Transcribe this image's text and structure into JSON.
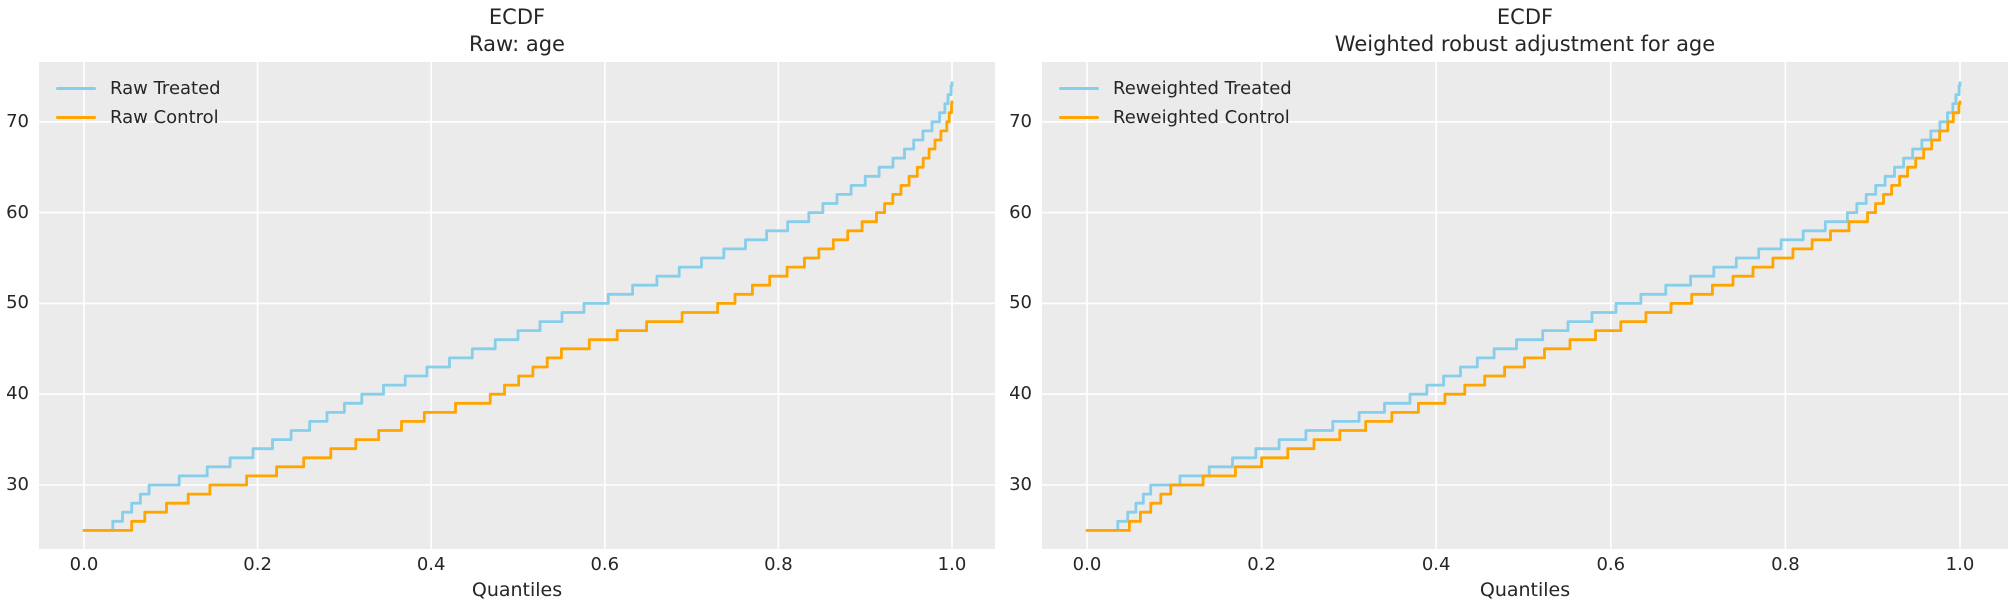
{
  "figure": {
    "background": "#ffffff",
    "axes_background": "#ebebeb",
    "grid_color": "#ffffff",
    "text_color": "#262626"
  },
  "chart_data": [
    {
      "type": "line",
      "subtype": "ecdf-quantile-step",
      "title": "ECDF",
      "subtitle": "Raw: age",
      "xlabel": "Quantiles",
      "ylabel": "",
      "xlim": [
        -0.052,
        1.05
      ],
      "ylim": [
        22.9,
        76.6
      ],
      "grid": true,
      "legend_position": "upper left",
      "xticks": [
        0.0,
        0.2,
        0.4,
        0.6,
        0.8,
        1.0
      ],
      "xticklabels": [
        "0.0",
        "0.2",
        "0.4",
        "0.6",
        "0.8",
        "1.0"
      ],
      "yticks": [
        30,
        40,
        50,
        60,
        70
      ],
      "yticklabels": [
        "30",
        "40",
        "50",
        "60",
        "70"
      ],
      "series": [
        {
          "name": "Raw Treated",
          "color": "#87CEEB",
          "anchors_quantile_value": [
            [
              0,
              25
            ],
            [
              0.022,
              25
            ],
            [
              0.05,
              27.5
            ],
            [
              0.075,
              30
            ],
            [
              0.134,
              31.7
            ],
            [
              0.2,
              34.2
            ],
            [
              0.26,
              37
            ],
            [
              0.32,
              40
            ],
            [
              0.4,
              43.2
            ],
            [
              0.5,
              47
            ],
            [
              0.576,
              50
            ],
            [
              0.66,
              53
            ],
            [
              0.75,
              56.5
            ],
            [
              0.835,
              60
            ],
            [
              0.9,
              64
            ],
            [
              0.94,
              66.5
            ],
            [
              0.977,
              70
            ],
            [
              0.99,
              71.5
            ],
            [
              1.0,
              74.3
            ]
          ]
        },
        {
          "name": "Raw Control",
          "color": "#FFA500",
          "anchors_quantile_value": [
            [
              0,
              25
            ],
            [
              0.04,
              25
            ],
            [
              0.07,
              27
            ],
            [
              0.145,
              30
            ],
            [
              0.2,
              31.3
            ],
            [
              0.3,
              34.5
            ],
            [
              0.4,
              38.3
            ],
            [
              0.468,
              40
            ],
            [
              0.55,
              45
            ],
            [
              0.64,
              47.8
            ],
            [
              0.73,
              50
            ],
            [
              0.83,
              55
            ],
            [
              0.913,
              60
            ],
            [
              0.96,
              65
            ],
            [
              0.994,
              70
            ],
            [
              1.0,
              72.2
            ]
          ]
        }
      ]
    },
    {
      "type": "line",
      "subtype": "ecdf-quantile-step",
      "title": "ECDF",
      "subtitle": "Weighted robust adjustment for age",
      "xlabel": "Quantiles",
      "ylabel": "",
      "xlim": [
        -0.052,
        1.05
      ],
      "ylim": [
        22.9,
        76.6
      ],
      "grid": true,
      "legend_position": "upper left",
      "xticks": [
        0.0,
        0.2,
        0.4,
        0.6,
        0.8,
        1.0
      ],
      "xticklabels": [
        "0.0",
        "0.2",
        "0.4",
        "0.6",
        "0.8",
        "1.0"
      ],
      "yticks": [
        30,
        40,
        50,
        60,
        70
      ],
      "yticklabels": [
        "30",
        "40",
        "50",
        "60",
        "70"
      ],
      "series": [
        {
          "name": "Reweighted Treated",
          "color": "#87CEEB",
          "anchors_quantile_value": [
            [
              0,
              25
            ],
            [
              0.024,
              25
            ],
            [
              0.05,
              27.3
            ],
            [
              0.073,
              30
            ],
            [
              0.14,
              32
            ],
            [
              0.22,
              35
            ],
            [
              0.3,
              37.6
            ],
            [
              0.37,
              40
            ],
            [
              0.474,
              45.4
            ],
            [
              0.54,
              47.6
            ],
            [
              0.606,
              50
            ],
            [
              0.7,
              53.3
            ],
            [
              0.79,
              56.8
            ],
            [
              0.871,
              60
            ],
            [
              0.925,
              65
            ],
            [
              0.977,
              70
            ],
            [
              0.99,
              71.5
            ],
            [
              1.0,
              74.3
            ]
          ]
        },
        {
          "name": "Reweighted Control",
          "color": "#FFA500",
          "anchors_quantile_value": [
            [
              0,
              25
            ],
            [
              0.036,
              25
            ],
            [
              0.065,
              27.3
            ],
            [
              0.096,
              30
            ],
            [
              0.17,
              32
            ],
            [
              0.26,
              35
            ],
            [
              0.34,
              37.7
            ],
            [
              0.41,
              40
            ],
            [
              0.524,
              45
            ],
            [
              0.6,
              47.6
            ],
            [
              0.669,
              50
            ],
            [
              0.74,
              53
            ],
            [
              0.82,
              56.5
            ],
            [
              0.894,
              60
            ],
            [
              0.94,
              65
            ],
            [
              0.986,
              70
            ],
            [
              1.0,
              72.2
            ]
          ]
        }
      ]
    }
  ]
}
